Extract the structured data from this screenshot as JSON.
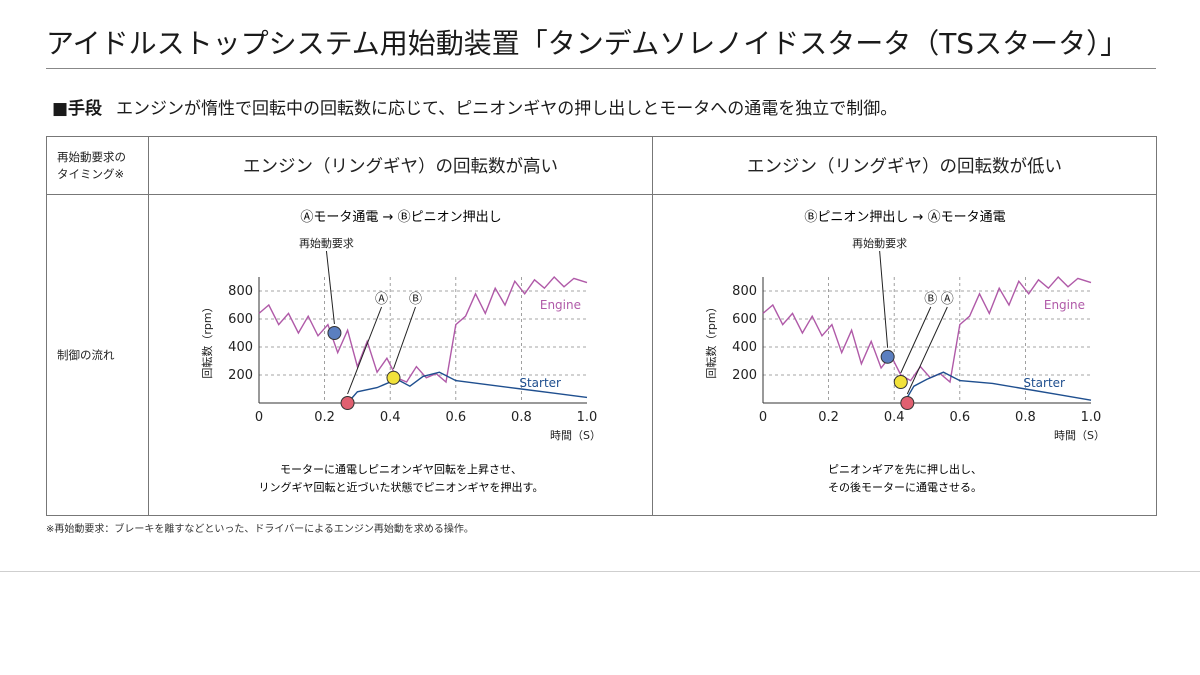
{
  "title": "アイドルストップシステム用始動装置「タンデムソレノイドスタータ（TSスタータ）」",
  "method": {
    "label": "■手段",
    "text": "エンジンが惰性で回転中の回転数に応じて、ピニオンギヤの押し出しとモータへの通電を独立で制御。"
  },
  "table": {
    "row1_header": [
      "再始動要求の",
      "タイミング※"
    ],
    "row2_header": "制御の流れ",
    "columns": [
      {
        "header": "エンジン（リングギヤ）の回転数が高い",
        "sequence": "Ⓐモータ通電 → Ⓑピニオン押出し",
        "restart_label": "再始動要求",
        "marker_a": "Ⓐ",
        "marker_b": "Ⓑ",
        "caption": [
          "モーターに通電しピニオンギヤ回転を上昇させ、",
          "リングギヤ回転と近づいた状態でピニオンギヤを押出す。"
        ]
      },
      {
        "header": "エンジン（リングギヤ）の回転数が低い",
        "sequence": "Ⓑピニオン押出し → Ⓐモータ通電",
        "restart_label": "再始動要求",
        "marker_a": "Ⓐ",
        "marker_b": "Ⓑ",
        "caption": [
          "ピニオンギアを先に押し出し、",
          "その後モーターに通電させる。"
        ]
      }
    ]
  },
  "chart_common": {
    "ylabel": "回転数（rpm）",
    "xlabel": "時間（S）",
    "yticks": [
      "800",
      "600",
      "400",
      "200"
    ],
    "xticks": [
      "0",
      "0.2",
      "0.4",
      "0.6",
      "0.8",
      "1.0"
    ],
    "engine_label": "Engine",
    "starter_label": "Starter"
  },
  "chart_data": [
    {
      "type": "line",
      "xlim": [
        0,
        1.0
      ],
      "ylim": [
        0,
        900
      ],
      "xlabel": "時間（S）",
      "ylabel": "回転数（rpm）",
      "grid": true,
      "series": [
        {
          "name": "Engine",
          "x": [
            0,
            0.03,
            0.06,
            0.09,
            0.12,
            0.15,
            0.18,
            0.21,
            0.24,
            0.27,
            0.3,
            0.33,
            0.36,
            0.39,
            0.42,
            0.45,
            0.48,
            0.51,
            0.54,
            0.57,
            0.6,
            0.63,
            0.66,
            0.69,
            0.72,
            0.75,
            0.78,
            0.81,
            0.84,
            0.87,
            0.9,
            0.93,
            0.96,
            1.0
          ],
          "values": [
            640,
            700,
            560,
            640,
            500,
            620,
            480,
            560,
            360,
            520,
            260,
            440,
            220,
            320,
            180,
            150,
            260,
            180,
            210,
            150,
            560,
            620,
            780,
            640,
            820,
            700,
            870,
            780,
            880,
            820,
            900,
            830,
            890,
            860
          ]
        },
        {
          "name": "Starter",
          "x": [
            0.27,
            0.3,
            0.36,
            0.42,
            0.46,
            0.5,
            0.55,
            0.6,
            0.7,
            0.8,
            0.9,
            1.0
          ],
          "values": [
            0,
            80,
            110,
            170,
            120,
            190,
            220,
            160,
            130,
            100,
            70,
            40
          ]
        }
      ],
      "markers": [
        {
          "label": "再始動要求",
          "x": 0.23,
          "y": 500,
          "color": "#5b7fc0"
        },
        {
          "label": "Ⓐ",
          "x": 0.27,
          "y": 0,
          "color": "#e06070"
        },
        {
          "label": "Ⓑ",
          "x": 0.41,
          "y": 180,
          "color": "#f2e23a"
        }
      ]
    },
    {
      "type": "line",
      "xlim": [
        0,
        1.0
      ],
      "ylim": [
        0,
        900
      ],
      "xlabel": "時間（S）",
      "ylabel": "回転数（rpm）",
      "grid": true,
      "series": [
        {
          "name": "Engine",
          "x": [
            0,
            0.03,
            0.06,
            0.09,
            0.12,
            0.15,
            0.18,
            0.21,
            0.24,
            0.27,
            0.3,
            0.33,
            0.36,
            0.39,
            0.42,
            0.45,
            0.48,
            0.51,
            0.54,
            0.57,
            0.6,
            0.63,
            0.66,
            0.69,
            0.72,
            0.75,
            0.78,
            0.81,
            0.84,
            0.87,
            0.9,
            0.93,
            0.96,
            1.0
          ],
          "values": [
            640,
            700,
            560,
            640,
            500,
            620,
            480,
            560,
            360,
            520,
            280,
            440,
            250,
            340,
            200,
            160,
            260,
            180,
            210,
            150,
            560,
            620,
            780,
            640,
            820,
            700,
            870,
            780,
            880,
            820,
            900,
            830,
            890,
            860
          ]
        },
        {
          "name": "Starter",
          "x": [
            0.43,
            0.46,
            0.5,
            0.55,
            0.6,
            0.7,
            0.8,
            0.9,
            1.0
          ],
          "values": [
            0,
            120,
            170,
            220,
            160,
            140,
            100,
            60,
            20
          ]
        }
      ],
      "markers": [
        {
          "label": "再始動要求",
          "x": 0.38,
          "y": 330,
          "color": "#5b7fc0"
        },
        {
          "label": "Ⓑ",
          "x": 0.42,
          "y": 150,
          "color": "#f2e23a"
        },
        {
          "label": "Ⓐ",
          "x": 0.44,
          "y": 0,
          "color": "#e06070"
        }
      ]
    }
  ],
  "footnote": "※再始動要求：ブレーキを離すなどといった、ドライバーによるエンジン再始動を求める操作。",
  "colors": {
    "engine": "#b05aa8",
    "starter": "#1f4f8f",
    "grid": "#888888"
  }
}
